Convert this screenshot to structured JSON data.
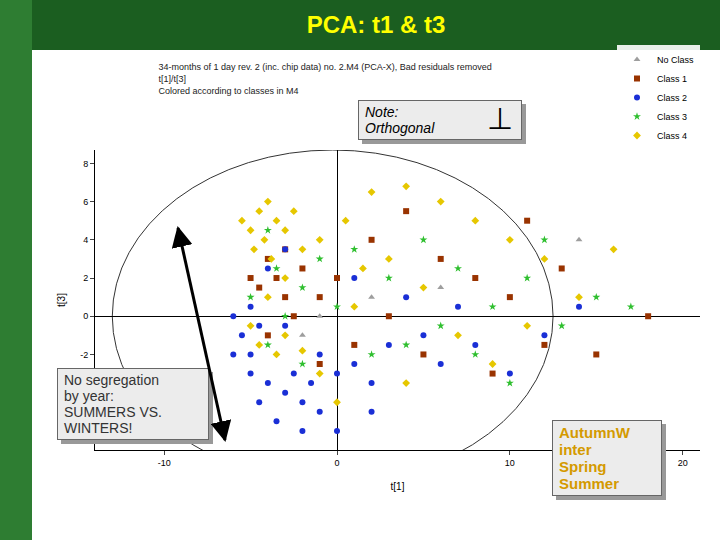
{
  "heading": "PCA: t1 & t3",
  "chart_data": {
    "type": "scatter",
    "title": [
      "34-months of 1 day rev. 2 (inc. chip data) no. 2.M4 (PCA-X), Bad residuals removed",
      "t[1]/t[3]",
      "Colored according to classes in M4"
    ],
    "xlabel": "t[1]",
    "ylabel": "t[3]",
    "xlim": [
      -14,
      21
    ],
    "ylim": [
      -7,
      8.7
    ],
    "xticks": [
      -10,
      0,
      10,
      20
    ],
    "yticks": [
      -2,
      0,
      2,
      4,
      6,
      8
    ],
    "grid": false,
    "legend": "top right",
    "ellipse": {
      "xlim": [
        -13,
        12.5
      ],
      "ylim": [
        -8.7,
        8.7
      ]
    },
    "annotations": {
      "note": {
        "lines": [
          "Note:",
          "Orthogonal"
        ],
        "symbol": "⊥"
      },
      "segregation": {
        "lines": [
          "No segregation",
          "by year:",
          "SUMMERS VS.",
          "WINTERS!"
        ]
      },
      "seasons": {
        "lines": [
          "AutumnW",
          "inter",
          "Spring",
          "Summer"
        ],
        "color": "#d49a00"
      }
    },
    "series": [
      {
        "name": "No Class",
        "color": "#9e9e9e",
        "marker": "triangle-up",
        "x": [
          2,
          -2,
          14,
          6,
          -1
        ],
        "values": [
          1,
          -1,
          4,
          1.5,
          0
        ]
      },
      {
        "name": "Class 1",
        "color": "#993300",
        "marker": "square",
        "x": [
          -4,
          -3.5,
          -3,
          -4.5,
          -2.5,
          -4,
          -3,
          -2,
          -1,
          0,
          2,
          4,
          6,
          8,
          10,
          12,
          15,
          18,
          9,
          5,
          3,
          1,
          -1,
          11,
          13,
          -5
        ],
        "values": [
          3,
          2,
          1,
          1.5,
          0,
          -1,
          3.5,
          2.5,
          1,
          2,
          4,
          5.5,
          3,
          2,
          1,
          -1.5,
          -2,
          0,
          -3,
          -2,
          0,
          -1.5,
          -2.5,
          5,
          2.5,
          2
        ]
      },
      {
        "name": "Class 2",
        "color": "#1a2fd6",
        "marker": "circle",
        "x": [
          -5,
          -4,
          -3,
          -2,
          -1,
          -4.5,
          -3.5,
          -2.5,
          -1.5,
          0,
          -5.5,
          -6,
          -5,
          -4.5,
          -6,
          -3,
          -1,
          1,
          2,
          3,
          5,
          6,
          8,
          10,
          12,
          14,
          4,
          1,
          -4,
          -3,
          -2,
          0,
          7,
          -5,
          2
        ],
        "values": [
          -3,
          -3.5,
          -4,
          -4.5,
          -5,
          -4.5,
          -5.5,
          -3,
          -3.5,
          -3,
          -1,
          0,
          0.5,
          -0.5,
          -2,
          -0.5,
          -2,
          -2.5,
          -3.5,
          -1.5,
          -1,
          -2.5,
          -1.5,
          -3,
          -1,
          0.5,
          1,
          2,
          2.5,
          3.5,
          -6,
          -6,
          0.5,
          -2,
          -5
        ]
      },
      {
        "name": "Class 3",
        "color": "#2fbf2f",
        "marker": "star",
        "x": [
          -4,
          -3.5,
          -5,
          -2,
          -1,
          1,
          3,
          5,
          7,
          9,
          11,
          13,
          15,
          17,
          6,
          4,
          2,
          -2,
          -4,
          0,
          8,
          10,
          -3,
          12
        ],
        "values": [
          4.5,
          2.5,
          1,
          1.5,
          3,
          3.5,
          2,
          4,
          2.5,
          0.5,
          2,
          -0.5,
          1,
          0.5,
          -0.5,
          -1.5,
          -2,
          -2.5,
          -1.5,
          0.5,
          -2,
          -3.5,
          0,
          4
        ]
      },
      {
        "name": "Class 4",
        "color": "#e6c700",
        "marker": "diamond",
        "x": [
          -4.5,
          -4,
          -3.5,
          -5,
          -4.2,
          -3,
          -2.5,
          -4.8,
          -3.8,
          -2,
          -1,
          0.5,
          2,
          4,
          6,
          8,
          10,
          12,
          14,
          3,
          -4,
          -3,
          -4.5,
          -3.5,
          -2,
          -5,
          1,
          5,
          7,
          9,
          -1,
          0,
          -3,
          -5.5,
          1.5,
          11,
          16,
          4
        ],
        "values": [
          5.5,
          6,
          5,
          4.5,
          4,
          4.5,
          5.5,
          3.5,
          3,
          3.5,
          4,
          5,
          6.5,
          6.8,
          6,
          5,
          4,
          3,
          1,
          3,
          1,
          -1,
          -1.5,
          -2,
          -1.8,
          -0.5,
          0.5,
          1.5,
          -1,
          -2.5,
          -3,
          -4.5,
          2,
          5,
          2.5,
          -0.5,
          3.5,
          -3.5
        ]
      }
    ]
  }
}
